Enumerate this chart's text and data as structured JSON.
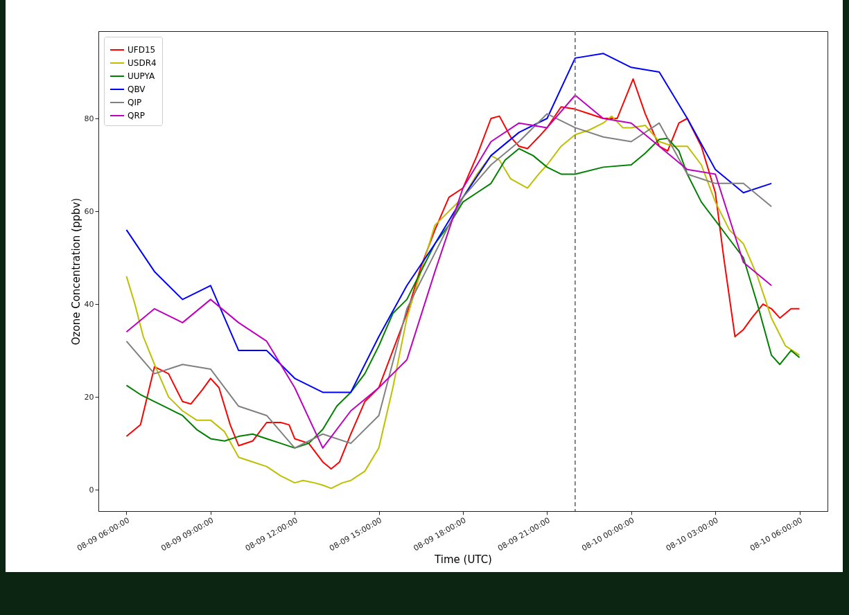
{
  "chart_data": {
    "type": "line",
    "xlabel": "Time (UTC)",
    "ylabel": "Ozone Concentration (ppbv)",
    "xlim": [
      "--08-09T05:00",
      "--08-10T07:00"
    ],
    "ylim": [
      -4.6,
      98.8
    ],
    "xticks": [
      {
        "value": "--08-09T06:00",
        "label": "08-09 06:00:00"
      },
      {
        "value": "--08-09T09:00",
        "label": "08-09 09:00:00"
      },
      {
        "value": "--08-09T12:00",
        "label": "08-09 12:00:00"
      },
      {
        "value": "--08-09T15:00",
        "label": "08-09 15:00:00"
      },
      {
        "value": "--08-09T18:00",
        "label": "08-09 18:00:00"
      },
      {
        "value": "--08-09T21:00",
        "label": "08-09 21:00:00"
      },
      {
        "value": "--08-10T00:00",
        "label": "08-10 00:00:00"
      },
      {
        "value": "--08-10T03:00",
        "label": "08-10 03:00:00"
      },
      {
        "value": "--08-10T06:00",
        "label": "08-10 06:00:00"
      }
    ],
    "yticks": [
      0,
      20,
      40,
      60,
      80
    ],
    "grid": false,
    "legend": "top left",
    "ref_lines": [
      {
        "axis": "x",
        "value": "--08-09T22:00",
        "color": "#808080",
        "line_style": "dashed"
      }
    ],
    "series": [
      {
        "name": "UFD15",
        "color": "#ff0000",
        "x": [
          "--08-09T06:00",
          "--08-09T06:30",
          "--08-09T07:00",
          "--08-09T07:30",
          "--08-09T08:00",
          "--08-09T08:18",
          "--08-09T08:42",
          "--08-09T09:00",
          "--08-09T09:18",
          "--08-09T09:42",
          "--08-09T10:00",
          "--08-09T10:30",
          "--08-09T11:00",
          "--08-09T11:30",
          "--08-09T11:48",
          "--08-09T12:00",
          "--08-09T12:30",
          "--08-09T13:00",
          "--08-09T13:18",
          "--08-09T13:36",
          "--08-09T14:00",
          "--08-09T14:30",
          "--08-09T15:00",
          "--08-09T15:30",
          "--08-09T16:00",
          "--08-09T16:30",
          "--08-09T17:00",
          "--08-09T17:30",
          "--08-09T18:00",
          "--08-09T18:30",
          "--08-09T19:00",
          "--08-09T19:18",
          "--08-09T19:42",
          "--08-09T20:00",
          "--08-09T20:18",
          "--08-09T20:42",
          "--08-09T21:00",
          "--08-09T21:30",
          "--08-09T22:00",
          "--08-09T22:30",
          "--08-09T23:00",
          "--08-09T23:30",
          "--08-10T00:04",
          "--08-10T00:30",
          "--08-10T01:00",
          "--08-10T01:18",
          "--08-10T01:42",
          "--08-10T02:00",
          "--08-10T02:30",
          "--08-10T03:00",
          "--08-10T03:18",
          "--08-10T03:42",
          "--08-10T04:00",
          "--08-10T04:18",
          "--08-10T04:42",
          "--08-10T05:00",
          "--08-10T05:18",
          "--08-10T05:42",
          "--08-10T06:00"
        ],
        "values": [
          11.5,
          14,
          26.5,
          25,
          19,
          18.5,
          21.5,
          24,
          22,
          14,
          9.5,
          10.5,
          14.5,
          14.5,
          14,
          11,
          10,
          6,
          4.5,
          6,
          12,
          19,
          22,
          30,
          38,
          48,
          56,
          63,
          65,
          72,
          80,
          80.5,
          76,
          74,
          73.5,
          76,
          78,
          82.5,
          82,
          81,
          80,
          80,
          88.5,
          81,
          74,
          73,
          79,
          80,
          74,
          64,
          50,
          33,
          34.5,
          37,
          40,
          39,
          37,
          39,
          39
        ]
      },
      {
        "name": "USDR4",
        "color": "#bfbf00",
        "x": [
          "--08-09T06:00",
          "--08-09T06:18",
          "--08-09T06:36",
          "--08-09T07:00",
          "--08-09T07:30",
          "--08-09T08:00",
          "--08-09T08:30",
          "--08-09T09:00",
          "--08-09T09:30",
          "--08-09T10:00",
          "--08-09T10:30",
          "--08-09T11:00",
          "--08-09T11:30",
          "--08-09T12:00",
          "--08-09T12:18",
          "--08-09T12:42",
          "--08-09T13:00",
          "--08-09T13:18",
          "--08-09T13:42",
          "--08-09T14:00",
          "--08-09T14:30",
          "--08-09T15:00",
          "--08-09T15:30",
          "--08-09T16:00",
          "--08-09T16:30",
          "--08-09T17:00",
          "--08-09T17:30",
          "--08-09T18:00",
          "--08-09T18:30",
          "--08-09T19:00",
          "--08-09T19:18",
          "--08-09T19:42",
          "--08-09T20:00",
          "--08-09T20:18",
          "--08-09T20:42",
          "--08-09T21:00",
          "--08-09T21:30",
          "--08-09T22:00",
          "--08-09T22:30",
          "--08-09T23:00",
          "--08-09T23:18",
          "--08-09T23:42",
          "--08-10T00:00",
          "--08-10T00:30",
          "--08-10T01:00",
          "--08-10T01:30",
          "--08-10T02:00",
          "--08-10T02:30",
          "--08-10T03:00",
          "--08-10T03:30",
          "--08-10T04:00",
          "--08-10T04:30",
          "--08-10T05:00",
          "--08-10T05:30",
          "--08-10T06:00"
        ],
        "values": [
          46,
          40,
          33,
          27,
          20,
          17,
          15,
          15,
          12.5,
          7,
          6,
          5,
          3,
          1.5,
          2,
          1.5,
          1,
          0.3,
          1.5,
          2,
          4,
          9,
          22,
          37,
          47,
          57,
          60,
          63,
          68,
          72,
          71,
          67,
          66,
          65,
          68,
          70,
          74,
          76.5,
          77.5,
          79,
          80.5,
          78,
          78,
          78.5,
          75,
          74,
          74,
          70,
          62,
          56,
          53,
          46,
          37,
          31,
          29
        ]
      },
      {
        "name": "UUPYA",
        "color": "#008000",
        "x": [
          "--08-09T06:00",
          "--08-09T06:30",
          "--08-09T07:00",
          "--08-09T07:30",
          "--08-09T08:00",
          "--08-09T08:30",
          "--08-09T09:00",
          "--08-09T09:30",
          "--08-09T10:00",
          "--08-09T10:30",
          "--08-09T11:00",
          "--08-09T11:30",
          "--08-09T12:00",
          "--08-09T12:30",
          "--08-09T13:00",
          "--08-09T13:30",
          "--08-09T14:00",
          "--08-09T14:30",
          "--08-09T15:00",
          "--08-09T15:30",
          "--08-09T16:00",
          "--08-09T16:30",
          "--08-09T17:00",
          "--08-09T17:30",
          "--08-09T18:00",
          "--08-09T18:30",
          "--08-09T19:00",
          "--08-09T19:30",
          "--08-09T20:00",
          "--08-09T20:30",
          "--08-09T21:00",
          "--08-09T21:30",
          "--08-09T22:00",
          "--08-09T23:00",
          "--08-10T00:00",
          "--08-10T00:30",
          "--08-10T01:00",
          "--08-10T01:18",
          "--08-10T01:42",
          "--08-10T02:00",
          "--08-10T02:30",
          "--08-10T03:00",
          "--08-10T03:30",
          "--08-10T04:00",
          "--08-10T04:30",
          "--08-10T05:00",
          "--08-10T05:18",
          "--08-10T05:42",
          "--08-10T06:00"
        ],
        "values": [
          22.5,
          20.5,
          19,
          17.5,
          16,
          13,
          11,
          10.5,
          11.5,
          12,
          11,
          10,
          9,
          10,
          13,
          18,
          21,
          25,
          31,
          38,
          41,
          47,
          53,
          57,
          62,
          64,
          66,
          71,
          73.5,
          72,
          69.5,
          68,
          68,
          69.5,
          70,
          72.5,
          75.5,
          75.7,
          73,
          68,
          62,
          58,
          54,
          50,
          40,
          29,
          27,
          30,
          28.5
        ]
      },
      {
        "name": "QBV",
        "color": "#0000ff",
        "x": [
          "--08-09T06:00",
          "--08-09T07:00",
          "--08-09T08:00",
          "--08-09T09:00",
          "--08-09T10:00",
          "--08-09T11:00",
          "--08-09T12:00",
          "--08-09T13:00",
          "--08-09T14:00",
          "--08-09T15:00",
          "--08-09T16:00",
          "--08-09T17:00",
          "--08-09T18:00",
          "--08-09T19:00",
          "--08-09T20:00",
          "--08-09T21:00",
          "--08-09T22:00",
          "--08-09T23:00",
          "--08-10T00:00",
          "--08-10T01:00",
          "--08-10T02:00",
          "--08-10T03:00",
          "--08-10T04:00",
          "--08-10T05:00"
        ],
        "values": [
          56,
          47,
          41,
          44,
          30,
          30,
          24,
          21,
          21,
          33,
          44,
          53,
          63,
          72,
          77,
          80,
          93,
          94,
          91,
          90,
          80,
          69,
          64,
          66
        ]
      },
      {
        "name": "QIP",
        "color": "#808080",
        "x": [
          "--08-09T06:00",
          "--08-09T07:00",
          "--08-09T08:00",
          "--08-09T09:00",
          "--08-09T10:00",
          "--08-09T11:00",
          "--08-09T12:00",
          "--08-09T13:00",
          "--08-09T14:00",
          "--08-09T15:00",
          "--08-09T16:00",
          "--08-09T17:00",
          "--08-09T18:00",
          "--08-09T19:00",
          "--08-09T20:00",
          "--08-09T21:00",
          "--08-09T22:00",
          "--08-09T23:00",
          "--08-10T00:00",
          "--08-10T01:00",
          "--08-10T02:00",
          "--08-10T03:00",
          "--08-10T04:00",
          "--08-10T05:00"
        ],
        "values": [
          32,
          25,
          27,
          26,
          18,
          16,
          9,
          12,
          10,
          16,
          39,
          51,
          63,
          70,
          75,
          81,
          78,
          76,
          75,
          79,
          68,
          66,
          66,
          61
        ]
      },
      {
        "name": "QRP",
        "color": "#bf00bf",
        "x": [
          "--08-09T06:00",
          "--08-09T07:00",
          "--08-09T08:00",
          "--08-09T09:00",
          "--08-09T10:00",
          "--08-09T11:00",
          "--08-09T12:00",
          "--08-09T13:00",
          "--08-09T14:00",
          "--08-09T15:00",
          "--08-09T16:00",
          "--08-09T17:00",
          "--08-09T18:00",
          "--08-09T19:00",
          "--08-09T20:00",
          "--08-09T21:00",
          "--08-09T22:00",
          "--08-09T23:00",
          "--08-10T00:00",
          "--08-10T01:00",
          "--08-10T02:00",
          "--08-10T03:00",
          "--08-10T04:00",
          "--08-10T05:00"
        ],
        "values": [
          34,
          39,
          36,
          41,
          36,
          32,
          22,
          9,
          17,
          22,
          28,
          47,
          65,
          75,
          79,
          78,
          85,
          80,
          79,
          74,
          69,
          68,
          49,
          44
        ]
      }
    ]
  }
}
